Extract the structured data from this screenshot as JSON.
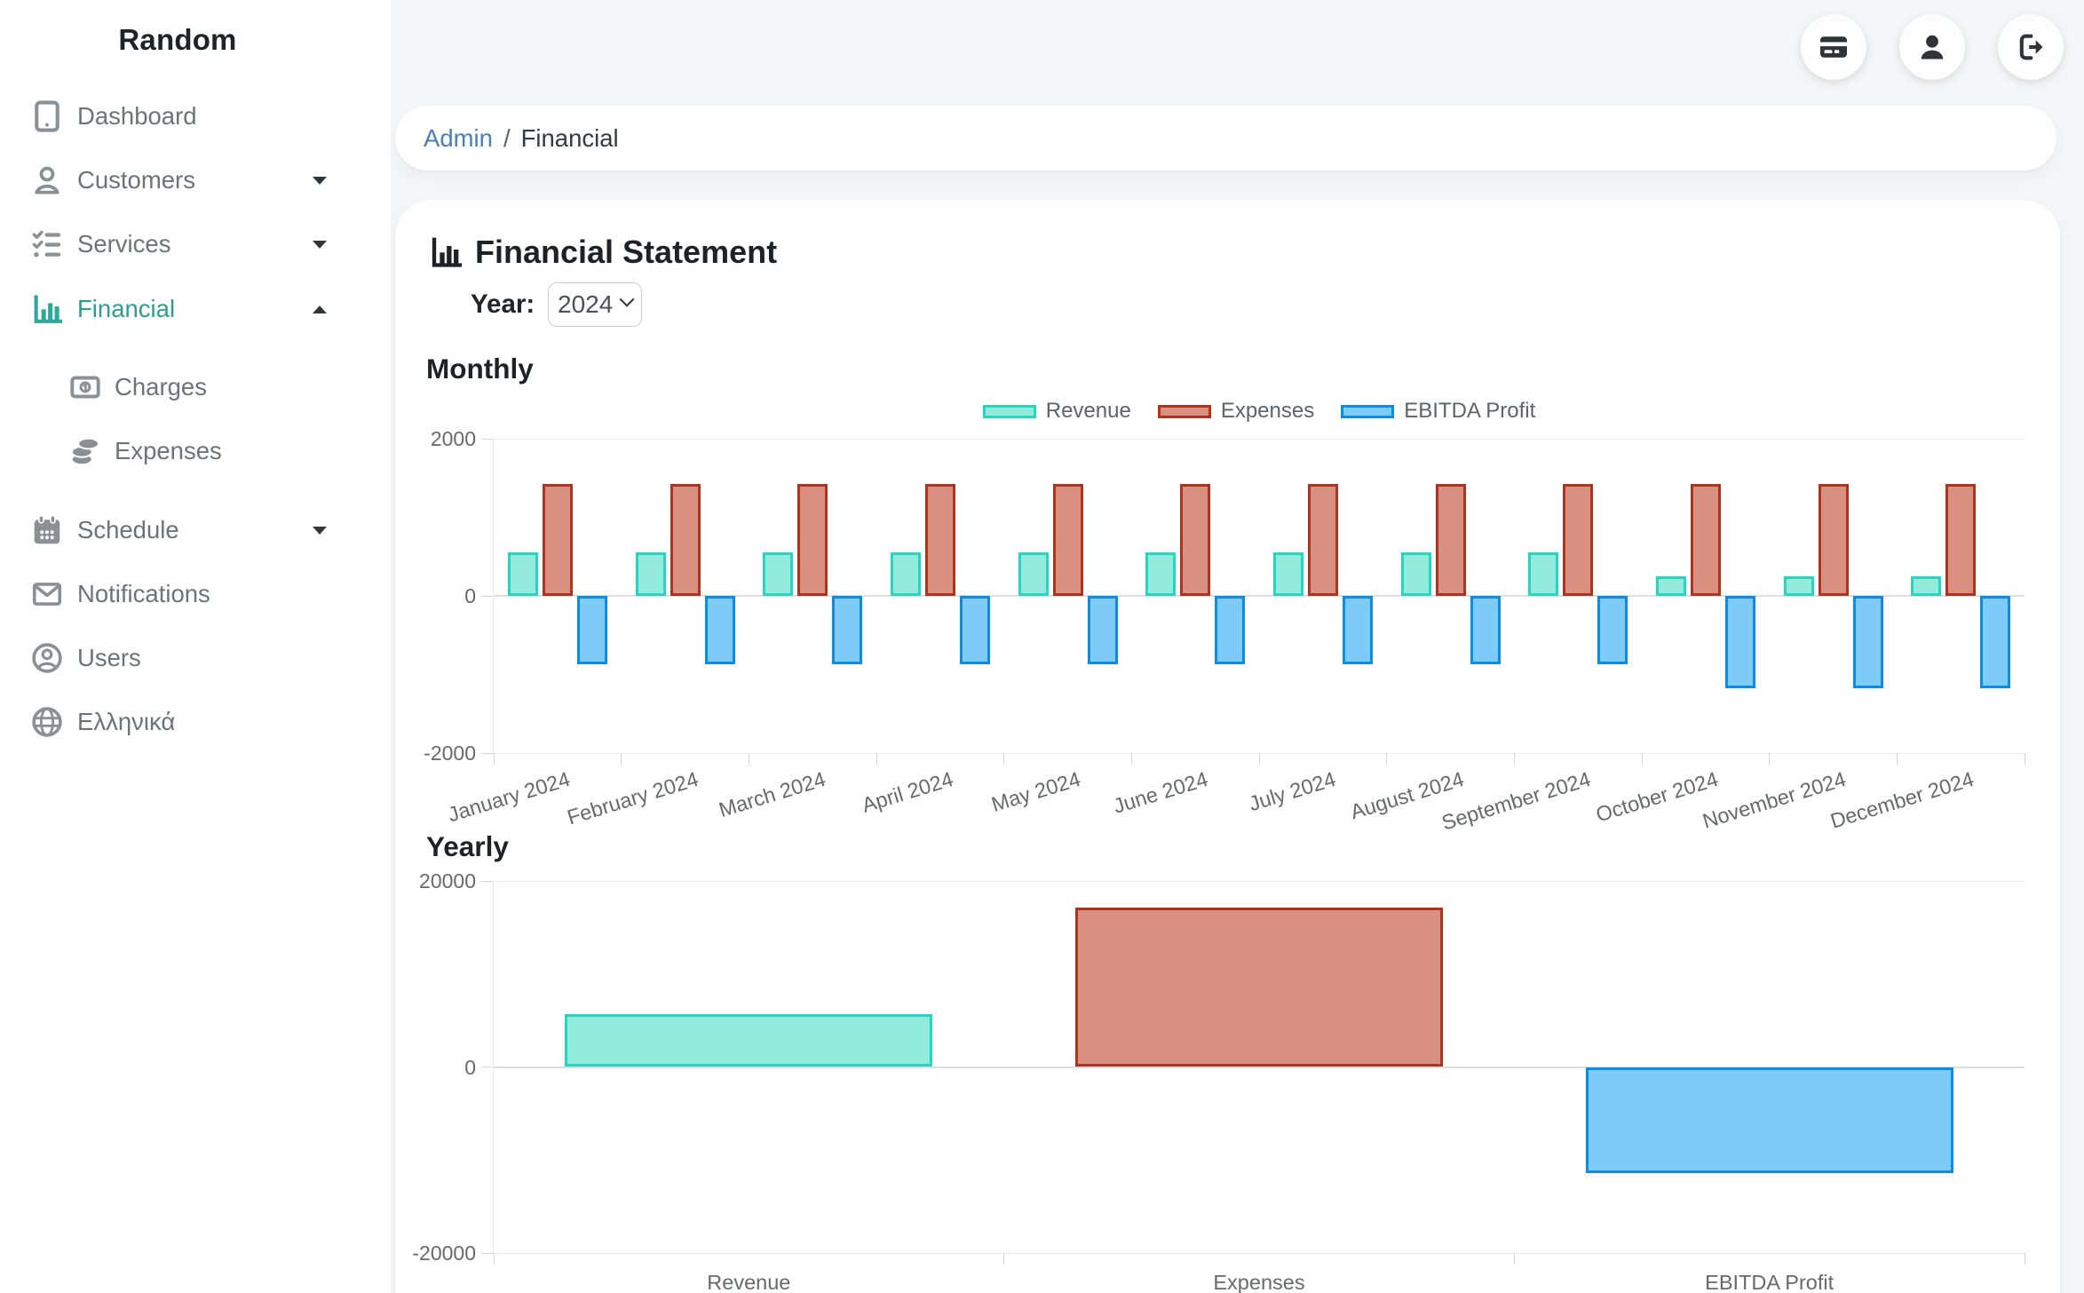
{
  "brand": {
    "name": "Random"
  },
  "topbar": {
    "buttons": [
      {
        "name": "billing",
        "icon": "credit-card-icon"
      },
      {
        "name": "profile",
        "icon": "user-icon"
      },
      {
        "name": "logout",
        "icon": "sign-out-icon"
      }
    ]
  },
  "sidebar": {
    "items": [
      {
        "label": "Dashboard",
        "icon": "tablet-icon"
      },
      {
        "label": "Customers",
        "icon": "user-icon",
        "chevron": "down"
      },
      {
        "label": "Services",
        "icon": "list-check-icon",
        "chevron": "down"
      },
      {
        "label": "Financial",
        "icon": "chart-bar-icon",
        "chevron": "up",
        "active": true
      },
      {
        "label": "Charges",
        "icon": "money-bill-icon",
        "submenu": true
      },
      {
        "label": "Expenses",
        "icon": "coins-icon",
        "submenu": true
      },
      {
        "label": "Schedule",
        "icon": "calendar-icon",
        "chevron": "down"
      },
      {
        "label": "Notifications",
        "icon": "envelope-icon"
      },
      {
        "label": "Users",
        "icon": "user-circle-icon"
      },
      {
        "label": "Ελληνικά",
        "icon": "globe-icon"
      }
    ]
  },
  "breadcrumb": {
    "section": "Admin",
    "separator": "/",
    "current": "Financial"
  },
  "content": {
    "title": "Financial Statement",
    "year_label": "Year:",
    "year_value": "2024",
    "monthly_heading": "Monthly",
    "yearly_heading": "Yearly"
  },
  "colors": {
    "accent_teal": "#2b9e92",
    "revenue_fill": "#93ecdb",
    "revenue_border": "#25d6c3",
    "expenses_fill": "#da9081",
    "expenses_border": "#b1331c",
    "ebitda_fill": "#7ecbf8",
    "ebitda_border": "#0b8de5",
    "background": "#f5f6f7",
    "card": "#ffffff",
    "link_blue": "#4a80b5"
  },
  "chart_data": [
    {
      "id": "monthly",
      "type": "bar",
      "title": "Monthly",
      "legend": true,
      "legend_position": "top",
      "grid": true,
      "categories": [
        "January 2024",
        "February 2024",
        "March 2024",
        "April 2024",
        "May 2024",
        "June 2024",
        "July 2024",
        "August 2024",
        "September 2024",
        "October 2024",
        "November 2024",
        "December 2024"
      ],
      "series": [
        {
          "name": "Revenue",
          "fill": "#93ecdb",
          "border": "#25d6c3",
          "values": [
            550,
            550,
            550,
            550,
            550,
            550,
            550,
            550,
            550,
            250,
            250,
            250
          ]
        },
        {
          "name": "Expenses",
          "fill": "#da9081",
          "border": "#b1331c",
          "values": [
            1425,
            1425,
            1425,
            1425,
            1425,
            1425,
            1425,
            1425,
            1425,
            1425,
            1425,
            1425
          ]
        },
        {
          "name": "EBITDA Profit",
          "fill": "#7ecbf8",
          "border": "#0b8de5",
          "values": [
            -875,
            -875,
            -875,
            -875,
            -875,
            -875,
            -875,
            -875,
            -875,
            -1175,
            -1175,
            -1175
          ]
        }
      ],
      "ylim": [
        -2000,
        2000
      ],
      "yticks": [
        2000,
        0,
        -2000
      ]
    },
    {
      "id": "yearly",
      "type": "bar",
      "title": "Yearly",
      "legend": false,
      "grid": true,
      "categories": [
        "Revenue",
        "Expenses",
        "EBITDA Profit"
      ],
      "series": [
        {
          "name": "Total",
          "values": [
            5700,
            17100,
            -11400
          ]
        }
      ],
      "palette": [
        {
          "fill": "#93ecdb",
          "border": "#25d6c3"
        },
        {
          "fill": "#da9081",
          "border": "#b1331c"
        },
        {
          "fill": "#7ecbf8",
          "border": "#0b8de5"
        }
      ],
      "ylim": [
        -20000,
        20000
      ],
      "yticks": [
        20000,
        0,
        -20000
      ]
    }
  ]
}
